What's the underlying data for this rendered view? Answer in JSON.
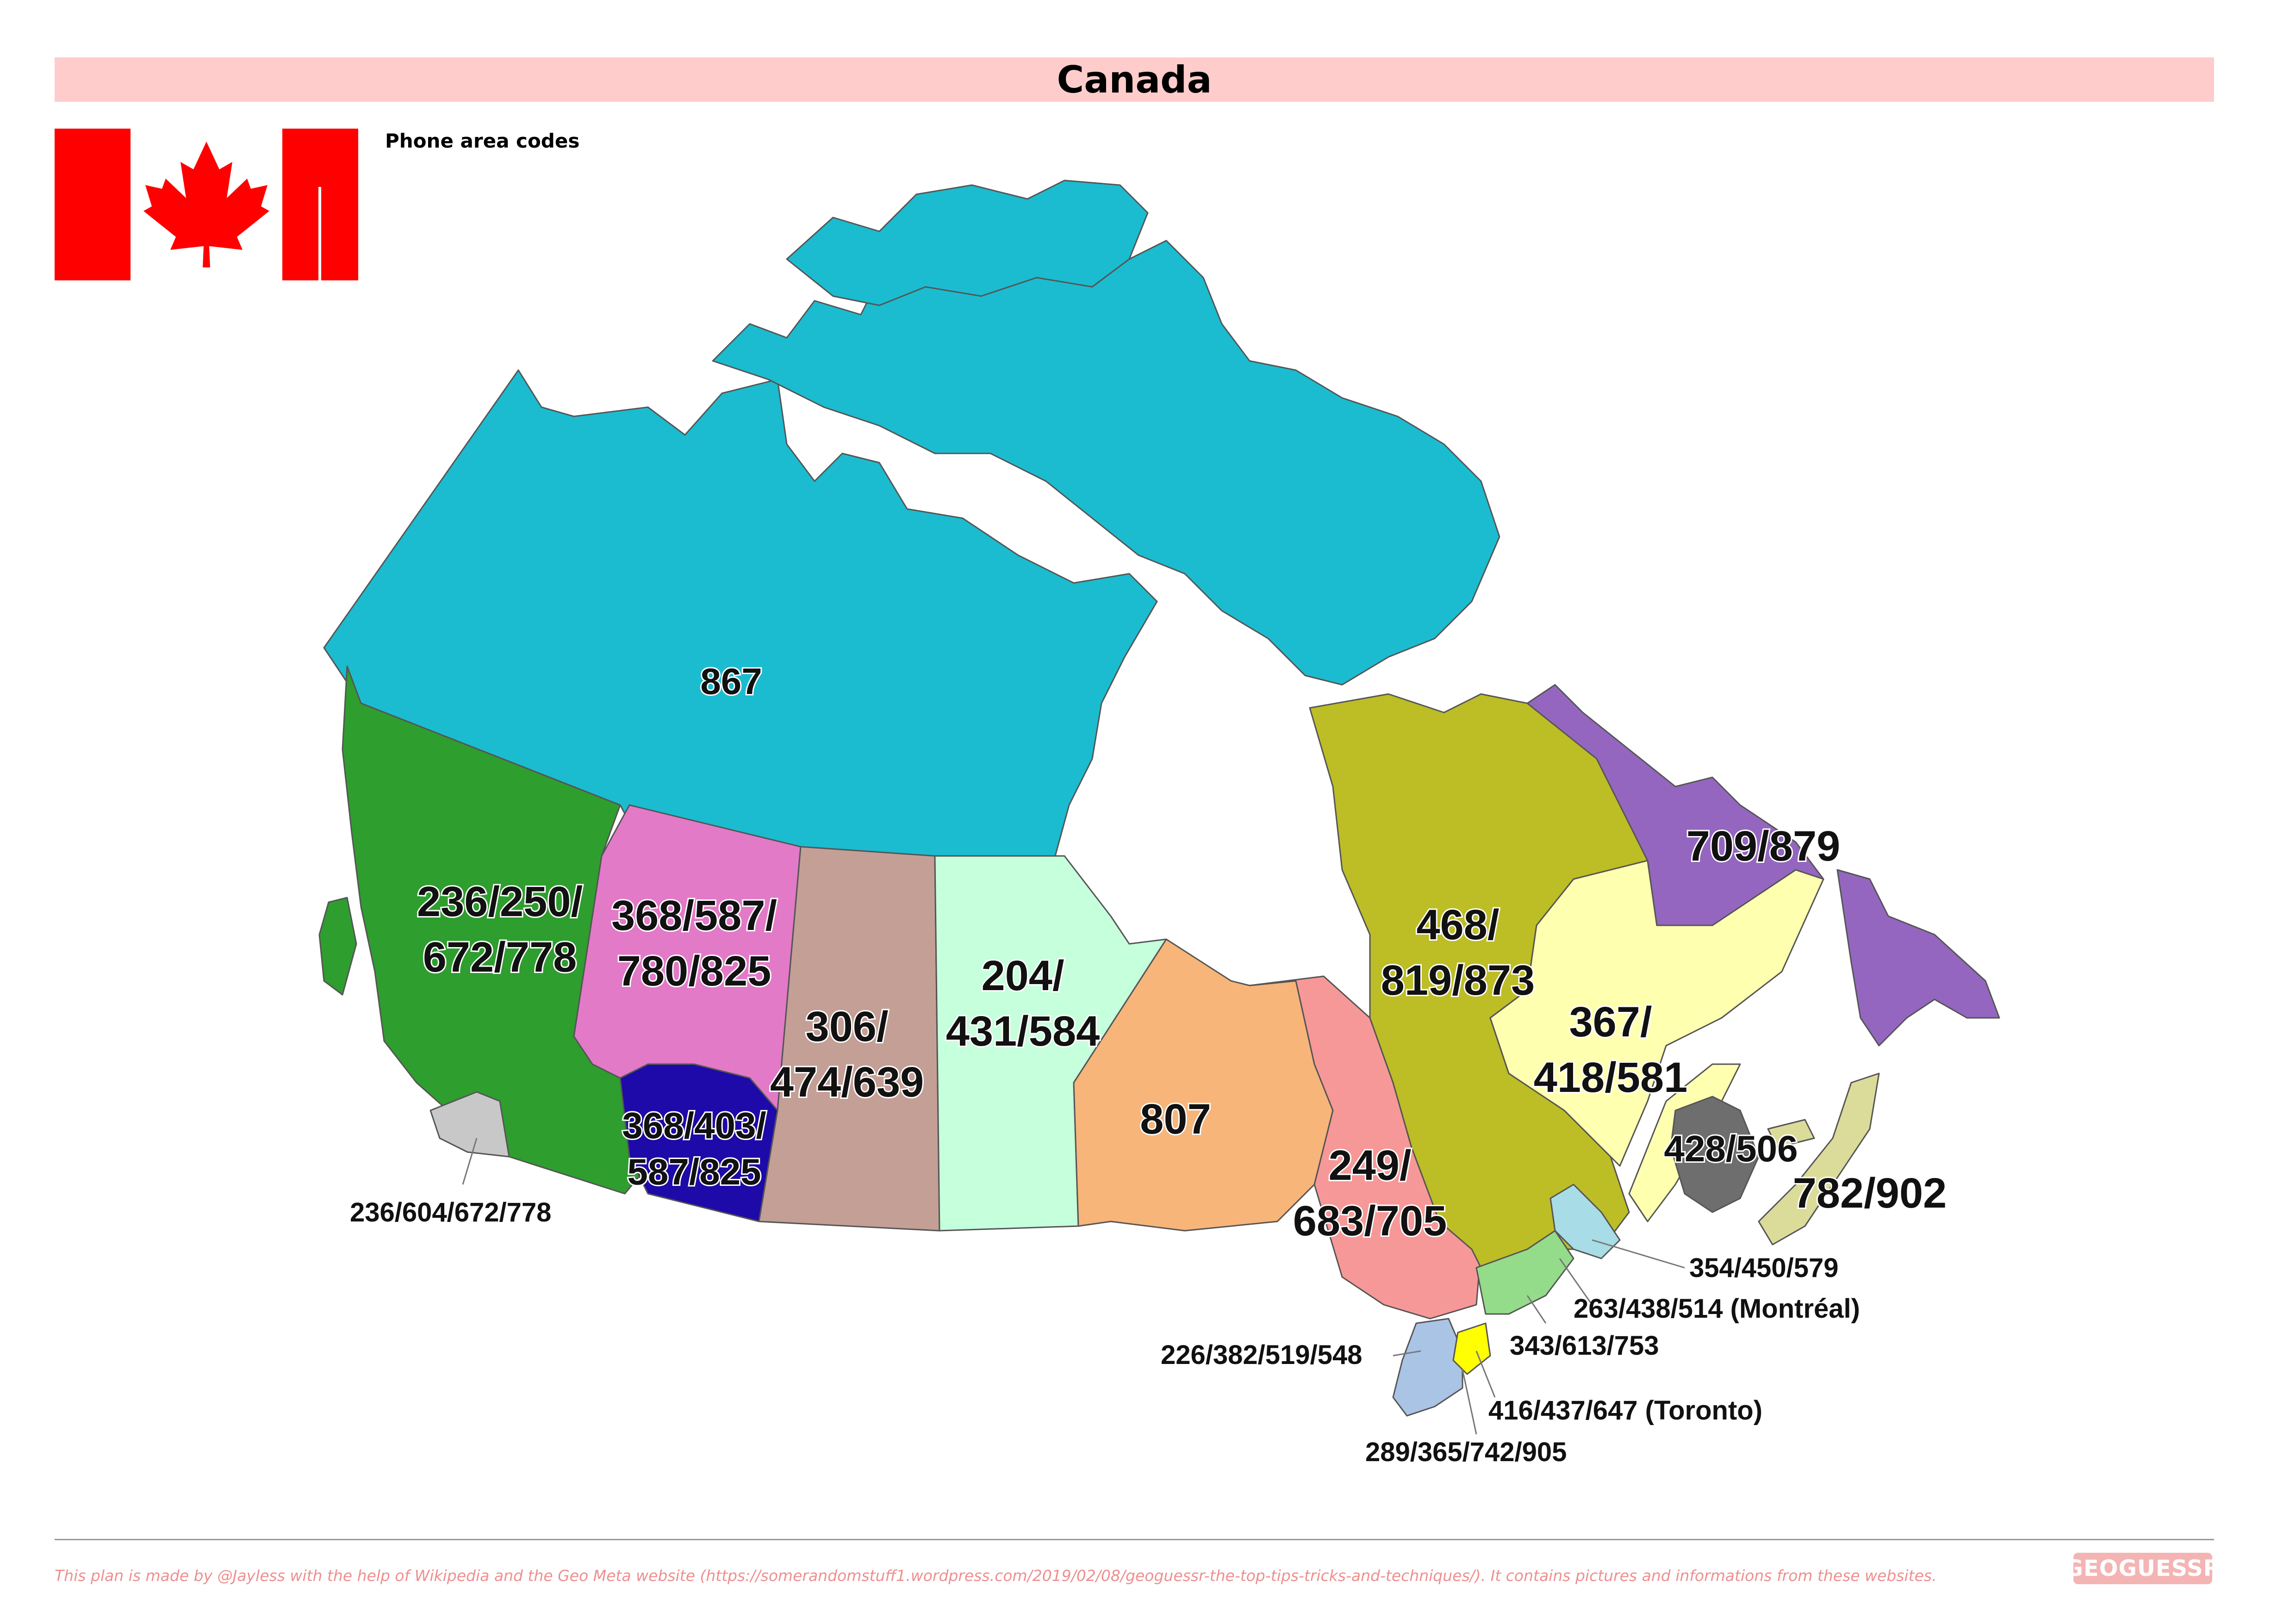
{
  "title": "Canada",
  "subtitle": "Phone area codes",
  "colors": {
    "title_bar": "#ffcccc",
    "flag_red": "#ff0000",
    "nunavut_nwt_yukon": "#1bbcd0",
    "bc": "#2e9e2e",
    "bc_south": "#c8c8c8",
    "alberta": "#e27ac8",
    "alberta_south": "#1d0aa8",
    "saskatchewan": "#c49f96",
    "manitoba": "#c6ffdc",
    "nw_ontario": "#f7b57a",
    "ne_ontario": "#f79898",
    "quebec_north": "#bdbd26",
    "quebec_east": "#ffffb0",
    "labrador_nl": "#9466c0",
    "new_brunswick": "#6e6e6e",
    "nova_scotia_pei": "#dcdc9a",
    "quebec_south": "#a8dce6",
    "eastern_ontario": "#94dc8a",
    "sw_ontario": "#aac4e6",
    "toronto": "#ffff00",
    "footer_text": "#ee8f8f"
  },
  "regions": [
    {
      "name": "North",
      "label": "867"
    },
    {
      "name": "British Columbia",
      "label_line1": "236/250/",
      "label_line2": "672/778"
    },
    {
      "name": "Alberta north",
      "label_line1": "368/587/",
      "label_line2": "780/825"
    },
    {
      "name": "Alberta south",
      "label_line1": "368/403/",
      "label_line2": "587/825"
    },
    {
      "name": "Saskatchewan",
      "label_line1": "306/",
      "label_line2": "474/639"
    },
    {
      "name": "Manitoba",
      "label_line1": "204/",
      "label_line2": "431/584"
    },
    {
      "name": "NW Ontario",
      "label": "807"
    },
    {
      "name": "NE Ontario",
      "label_line1": "249/",
      "label_line2": "683/705"
    },
    {
      "name": "Quebec north",
      "label_line1": "468/",
      "label_line2": "819/873"
    },
    {
      "name": "Quebec east",
      "label_line1": "367/",
      "label_line2": "418/581"
    },
    {
      "name": "Newfoundland and Labrador",
      "label": "709/879"
    },
    {
      "name": "New Brunswick",
      "label": "428/506"
    },
    {
      "name": "Nova Scotia and PEI",
      "label": "782/902"
    }
  ],
  "callouts": {
    "vancouver": "236/604/672/778",
    "quebec_south": "354/450/579",
    "montreal": "263/438/514 (Montréal)",
    "ottawa": "343/613/753",
    "sw_ontario": "226/382/519/548",
    "toronto": "416/437/647 (Toronto)",
    "golden_horseshoe": "289/365/742/905"
  },
  "footer": "This plan is made by @Jayless with the help of Wikipedia and the Geo Meta website (https://somerandomstuff1.wordpress.com/2019/02/08/geoguessr-the-top-tips-tricks-and-techniques/). It contains pictures and informations from these websites.",
  "logo_text": "GEOGUESSR"
}
